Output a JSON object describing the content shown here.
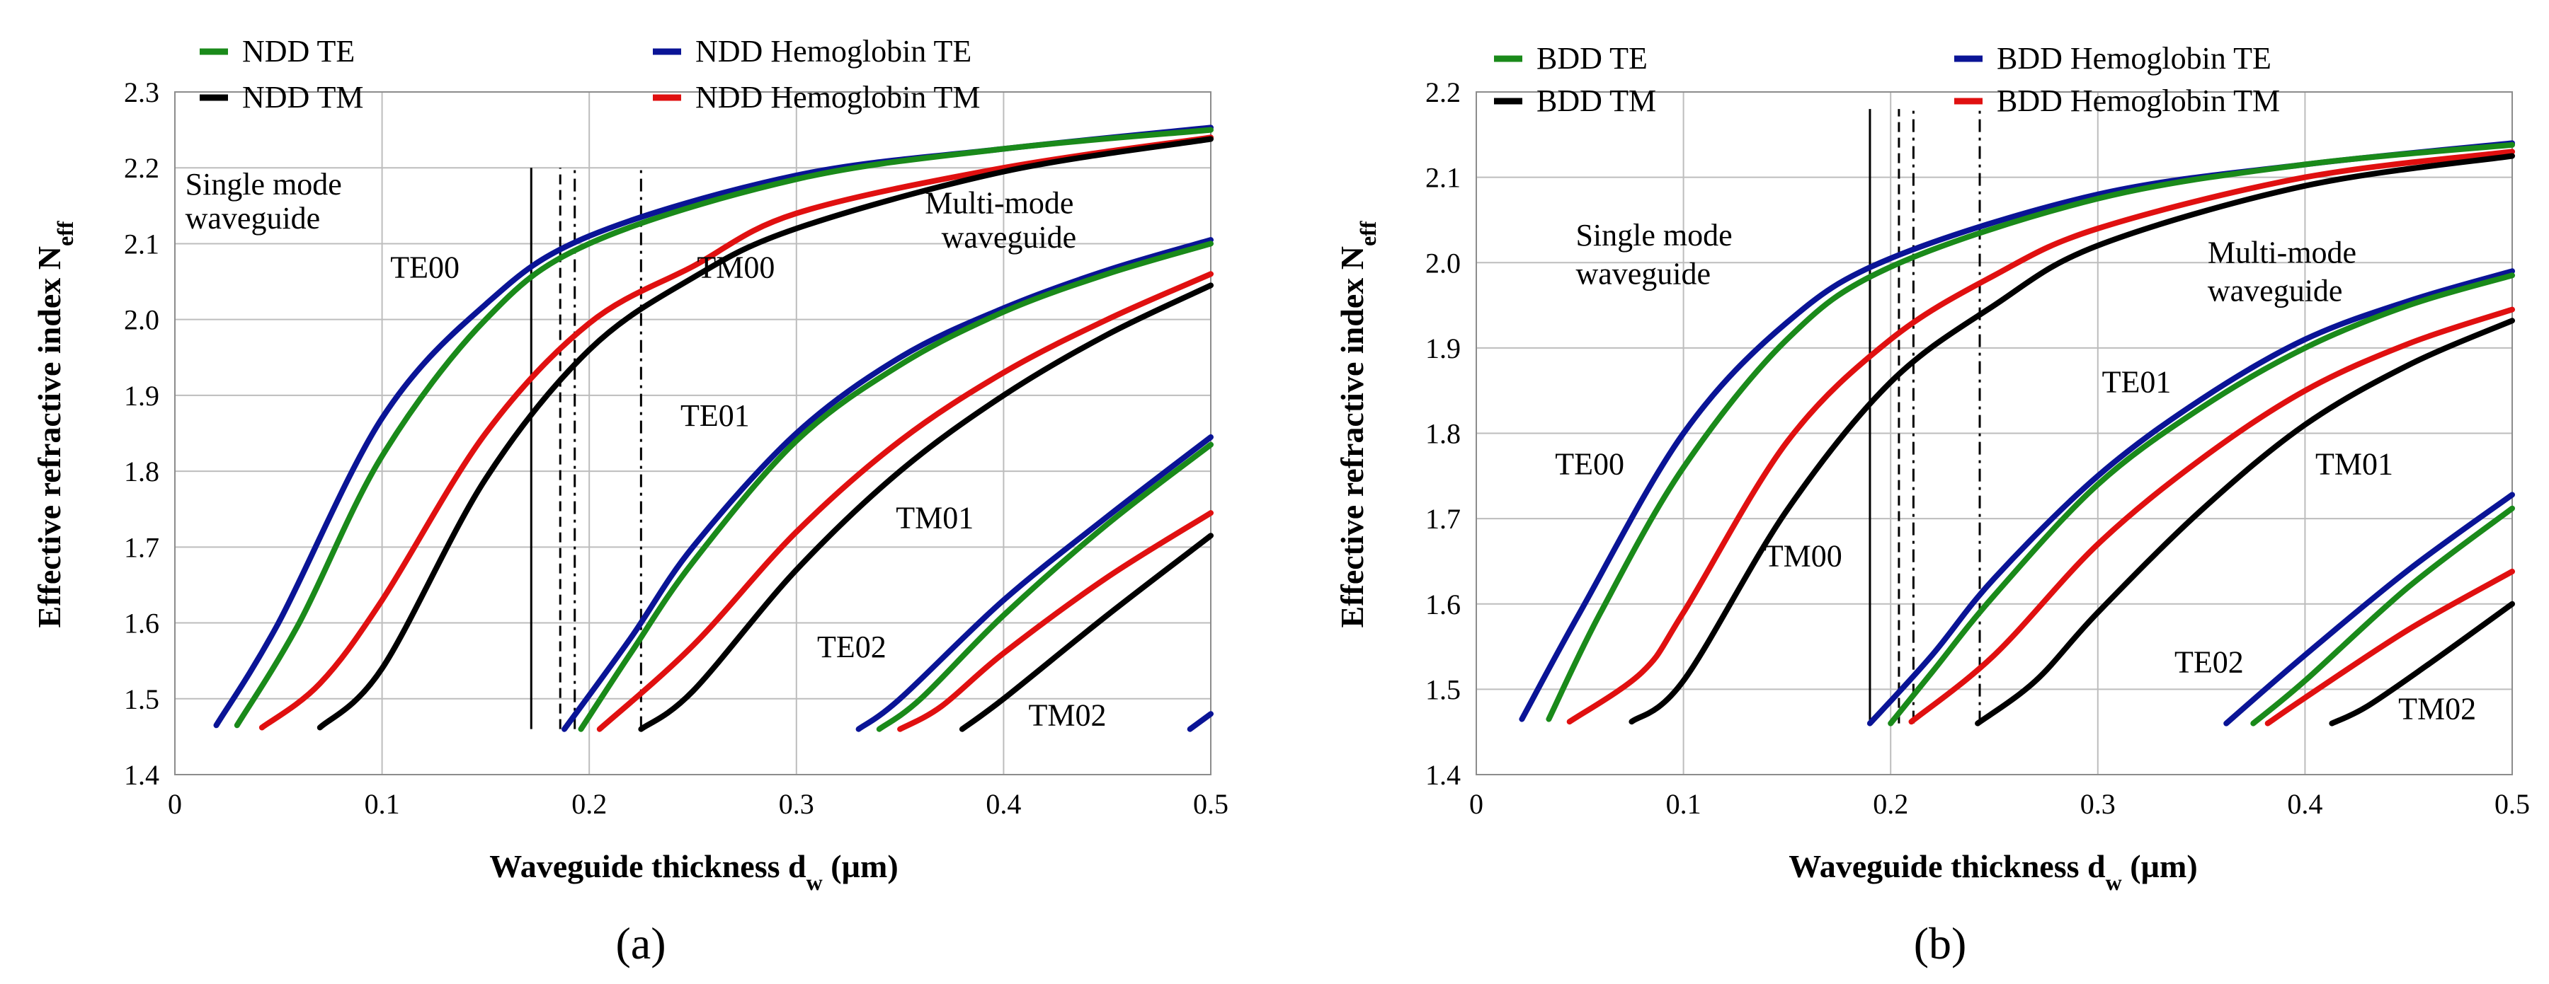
{
  "chart_data": [
    {
      "id": "a",
      "type": "line",
      "panel_label": "(a)",
      "xlabel": "Waveguide thickness d_w (µm)",
      "ylabel": "Effective refractive index N_eff",
      "xlim": [
        0,
        0.5
      ],
      "ylim": [
        1.4,
        2.3
      ],
      "xticks": [
        0,
        0.1,
        0.2,
        0.3,
        0.4,
        0.5
      ],
      "xtick_labels": [
        "0",
        "0.1",
        "0.2",
        "0.3",
        "0.4",
        "0.5"
      ],
      "yticks": [
        1.4,
        1.5,
        1.6,
        1.7,
        1.8,
        1.9,
        2.0,
        2.1,
        2.2,
        2.3
      ],
      "ytick_labels": [
        "1.4",
        "1.5",
        "1.6",
        "1.7",
        "1.8",
        "1.9",
        "2.0",
        "2.1",
        "2.2",
        "2.3"
      ],
      "grid": true,
      "legend": [
        {
          "label": "NDD TE",
          "color": "#1a8a1a"
        },
        {
          "label": "NDD Hemoglobin TE",
          "color": "#0a1496"
        },
        {
          "label": "NDD TM",
          "color": "#000000"
        },
        {
          "label": "NDD Hemoglobin TM",
          "color": "#e01010"
        }
      ],
      "series": [
        {
          "name": "NDD Hemoglobin TE - TE00",
          "color": "#0a1496",
          "x": [
            0.02,
            0.05,
            0.1,
            0.15,
            0.2,
            0.3,
            0.4,
            0.5
          ],
          "y": [
            1.465,
            1.6,
            1.87,
            2.02,
            2.11,
            2.19,
            2.225,
            2.253
          ]
        },
        {
          "name": "NDD TE - TE00",
          "color": "#1a8a1a",
          "x": [
            0.03,
            0.06,
            0.1,
            0.15,
            0.2,
            0.3,
            0.4,
            0.5
          ],
          "y": [
            1.465,
            1.6,
            1.82,
            2.0,
            2.1,
            2.185,
            2.225,
            2.25
          ]
        },
        {
          "name": "NDD Hemoglobin TM - TM00",
          "color": "#e01010",
          "x": [
            0.042,
            0.07,
            0.1,
            0.15,
            0.2,
            0.25,
            0.3,
            0.4,
            0.5
          ],
          "y": [
            1.462,
            1.52,
            1.63,
            1.85,
            1.995,
            2.07,
            2.14,
            2.2,
            2.24
          ]
        },
        {
          "name": "NDD TM - TM00",
          "color": "#000000",
          "x": [
            0.07,
            0.1,
            0.15,
            0.2,
            0.25,
            0.3,
            0.4,
            0.5
          ],
          "y": [
            1.462,
            1.54,
            1.79,
            1.96,
            2.055,
            2.12,
            2.195,
            2.238
          ]
        },
        {
          "name": "NDD Hemoglobin TE - TE01",
          "color": "#0a1496",
          "x": [
            0.188,
            0.22,
            0.25,
            0.3,
            0.35,
            0.4,
            0.45,
            0.5
          ],
          "y": [
            1.46,
            1.58,
            1.7,
            1.85,
            1.95,
            2.015,
            2.065,
            2.105
          ]
        },
        {
          "name": "NDD TE - TE01",
          "color": "#1a8a1a",
          "x": [
            0.196,
            0.22,
            0.25,
            0.3,
            0.35,
            0.4,
            0.45,
            0.5
          ],
          "y": [
            1.46,
            1.56,
            1.68,
            1.84,
            1.94,
            2.01,
            2.06,
            2.1
          ]
        },
        {
          "name": "NDD Hemoglobin TM - TM01",
          "color": "#e01010",
          "x": [
            0.205,
            0.25,
            0.3,
            0.35,
            0.4,
            0.45,
            0.5
          ],
          "y": [
            1.46,
            1.57,
            1.72,
            1.84,
            1.93,
            2.0,
            2.06
          ]
        },
        {
          "name": "NDD TM - TM01",
          "color": "#000000",
          "x": [
            0.225,
            0.25,
            0.3,
            0.35,
            0.4,
            0.45,
            0.5
          ],
          "y": [
            1.46,
            1.51,
            1.67,
            1.8,
            1.9,
            1.98,
            2.045
          ]
        },
        {
          "name": "NDD Hemoglobin TE - TE02",
          "color": "#0a1496",
          "x": [
            0.33,
            0.35,
            0.4,
            0.45,
            0.5
          ],
          "y": [
            1.46,
            1.5,
            1.63,
            1.74,
            1.845
          ]
        },
        {
          "name": "NDD TE - TE02",
          "color": "#1a8a1a",
          "x": [
            0.34,
            0.36,
            0.4,
            0.45,
            0.5
          ],
          "y": [
            1.46,
            1.5,
            1.61,
            1.73,
            1.835
          ]
        },
        {
          "name": "NDD Hemoglobin TM - TM02",
          "color": "#e01010",
          "x": [
            0.35,
            0.37,
            0.4,
            0.45,
            0.5
          ],
          "y": [
            1.46,
            1.49,
            1.56,
            1.66,
            1.745
          ]
        },
        {
          "name": "NDD TM - TM02",
          "color": "#000000",
          "x": [
            0.38,
            0.4,
            0.45,
            0.5
          ],
          "y": [
            1.46,
            1.5,
            1.61,
            1.715
          ]
        },
        {
          "name": "NDD Hemoglobin TE - TE03",
          "color": "#0a1496",
          "x": [
            0.49,
            0.5
          ],
          "y": [
            1.46,
            1.48
          ]
        }
      ],
      "vlines": [
        {
          "x": 0.172,
          "style": "solid",
          "y0": 1.46,
          "y1": 2.2
        },
        {
          "x": 0.186,
          "style": "dashed",
          "y0": 1.46,
          "y1": 2.2
        },
        {
          "x": 0.193,
          "style": "dashdot",
          "y0": 1.46,
          "y1": 2.2
        },
        {
          "x": 0.225,
          "style": "dashdot",
          "y0": 1.46,
          "y1": 2.2
        }
      ],
      "annotations": [
        {
          "text": "Single mode",
          "x": 0.005,
          "y": 2.165
        },
        {
          "text": "waveguide",
          "x": 0.005,
          "y": 2.12
        },
        {
          "text": "Multi-mode",
          "x": 0.362,
          "y": 2.14
        },
        {
          "text": "waveguide",
          "x": 0.37,
          "y": 2.095
        },
        {
          "text": "TE00",
          "x": 0.104,
          "y": 2.055
        },
        {
          "text": "TM00",
          "x": 0.252,
          "y": 2.055
        },
        {
          "text": "TE01",
          "x": 0.244,
          "y": 1.86
        },
        {
          "text": "TM01",
          "x": 0.348,
          "y": 1.725
        },
        {
          "text": "TE02",
          "x": 0.31,
          "y": 1.555
        },
        {
          "text": "TM02",
          "x": 0.412,
          "y": 1.465
        }
      ]
    },
    {
      "id": "b",
      "type": "line",
      "panel_label": "(b)",
      "xlabel": "Waveguide thickness d_w (µm)",
      "ylabel": "Effective refractive index N_eff",
      "xlim": [
        0,
        0.5
      ],
      "ylim": [
        1.4,
        2.2
      ],
      "xticks": [
        0,
        0.1,
        0.2,
        0.3,
        0.4,
        0.5
      ],
      "xtick_labels": [
        "0",
        "0.1",
        "0.2",
        "0.3",
        "0.4",
        "0.5"
      ],
      "yticks": [
        1.4,
        1.5,
        1.6,
        1.7,
        1.8,
        1.9,
        2.0,
        2.1,
        2.2
      ],
      "ytick_labels": [
        "1.4",
        "1.5",
        "1.6",
        "1.7",
        "1.8",
        "1.9",
        "2.0",
        "2.1",
        "2.2"
      ],
      "grid": true,
      "legend": [
        {
          "label": "BDD TE",
          "color": "#1a8a1a"
        },
        {
          "label": "BDD Hemoglobin TE",
          "color": "#0a1496"
        },
        {
          "label": "BDD TM",
          "color": "#000000"
        },
        {
          "label": "BDD Hemoglobin TM",
          "color": "#e01010"
        }
      ],
      "series": [
        {
          "name": "BDD Hemoglobin TE - TE00",
          "color": "#0a1496",
          "x": [
            0.022,
            0.05,
            0.1,
            0.15,
            0.2,
            0.3,
            0.4,
            0.5
          ],
          "y": [
            1.465,
            1.59,
            1.8,
            1.93,
            2.005,
            2.08,
            2.115,
            2.14
          ]
        },
        {
          "name": "BDD TE - TE00",
          "color": "#1a8a1a",
          "x": [
            0.035,
            0.06,
            0.1,
            0.15,
            0.2,
            0.3,
            0.4,
            0.5
          ],
          "y": [
            1.465,
            1.59,
            1.76,
            1.91,
            1.995,
            2.075,
            2.115,
            2.138
          ]
        },
        {
          "name": "BDD Hemoglobin TM - TM00",
          "color": "#e01010",
          "x": [
            0.045,
            0.08,
            0.1,
            0.15,
            0.2,
            0.25,
            0.3,
            0.4,
            0.5
          ],
          "y": [
            1.462,
            1.52,
            1.59,
            1.79,
            1.91,
            1.985,
            2.04,
            2.1,
            2.13
          ]
        },
        {
          "name": "BDD TM - TM00",
          "color": "#000000",
          "x": [
            0.075,
            0.1,
            0.15,
            0.2,
            0.25,
            0.3,
            0.4,
            0.5
          ],
          "y": [
            1.462,
            1.51,
            1.71,
            1.86,
            1.95,
            2.02,
            2.09,
            2.125
          ]
        },
        {
          "name": "BDD Hemoglobin TE - TE01",
          "color": "#0a1496",
          "x": [
            0.19,
            0.22,
            0.25,
            0.3,
            0.35,
            0.4,
            0.45,
            0.5
          ],
          "y": [
            1.46,
            1.54,
            1.63,
            1.75,
            1.84,
            1.91,
            1.955,
            1.99
          ]
        },
        {
          "name": "BDD TE - TE01",
          "color": "#1a8a1a",
          "x": [
            0.2,
            0.22,
            0.25,
            0.3,
            0.35,
            0.4,
            0.45,
            0.5
          ],
          "y": [
            1.46,
            1.52,
            1.61,
            1.74,
            1.83,
            1.9,
            1.95,
            1.985
          ]
        },
        {
          "name": "BDD Hemoglobin TM - TM01",
          "color": "#e01010",
          "x": [
            0.21,
            0.25,
            0.3,
            0.35,
            0.4,
            0.45,
            0.5
          ],
          "y": [
            1.462,
            1.54,
            1.67,
            1.77,
            1.85,
            1.905,
            1.945
          ]
        },
        {
          "name": "BDD TM - TM01",
          "color": "#000000",
          "x": [
            0.242,
            0.27,
            0.3,
            0.35,
            0.4,
            0.45,
            0.5
          ],
          "y": [
            1.46,
            1.51,
            1.59,
            1.71,
            1.81,
            1.88,
            1.932
          ]
        },
        {
          "name": "BDD Hemoglobin TE - TE02",
          "color": "#0a1496",
          "x": [
            0.362,
            0.4,
            0.45,
            0.5
          ],
          "y": [
            1.46,
            1.54,
            1.64,
            1.728
          ]
        },
        {
          "name": "BDD TE - TE02",
          "color": "#1a8a1a",
          "x": [
            0.375,
            0.4,
            0.45,
            0.5
          ],
          "y": [
            1.46,
            1.51,
            1.62,
            1.712
          ]
        },
        {
          "name": "BDD Hemoglobin TM - TM02",
          "color": "#e01010",
          "x": [
            0.382,
            0.4,
            0.45,
            0.5
          ],
          "y": [
            1.46,
            1.49,
            1.57,
            1.638
          ]
        },
        {
          "name": "BDD TM - TM02",
          "color": "#000000",
          "x": [
            0.413,
            0.43,
            0.46,
            0.5
          ],
          "y": [
            1.46,
            1.48,
            1.53,
            1.6
          ]
        }
      ],
      "vlines": [
        {
          "x": 0.19,
          "style": "solid",
          "y0": 1.46,
          "y1": 2.18
        },
        {
          "x": 0.204,
          "style": "dashed",
          "y0": 1.46,
          "y1": 2.18
        },
        {
          "x": 0.211,
          "style": "dashdot",
          "y0": 1.46,
          "y1": 2.18
        },
        {
          "x": 0.243,
          "style": "dashdot",
          "y0": 1.46,
          "y1": 2.18
        }
      ],
      "annotations": [
        {
          "text": "Single mode",
          "x": 0.048,
          "y": 2.02
        },
        {
          "text": "waveguide",
          "x": 0.048,
          "y": 1.975
        },
        {
          "text": "Multi-mode",
          "x": 0.353,
          "y": 2.0
        },
        {
          "text": "waveguide",
          "x": 0.353,
          "y": 1.955
        },
        {
          "text": "TE00",
          "x": 0.038,
          "y": 1.752
        },
        {
          "text": "TM00",
          "x": 0.139,
          "y": 1.644
        },
        {
          "text": "TE01",
          "x": 0.302,
          "y": 1.848
        },
        {
          "text": "TM01",
          "x": 0.405,
          "y": 1.752
        },
        {
          "text": "TE02",
          "x": 0.337,
          "y": 1.52
        },
        {
          "text": "TM02",
          "x": 0.445,
          "y": 1.465
        }
      ]
    }
  ]
}
